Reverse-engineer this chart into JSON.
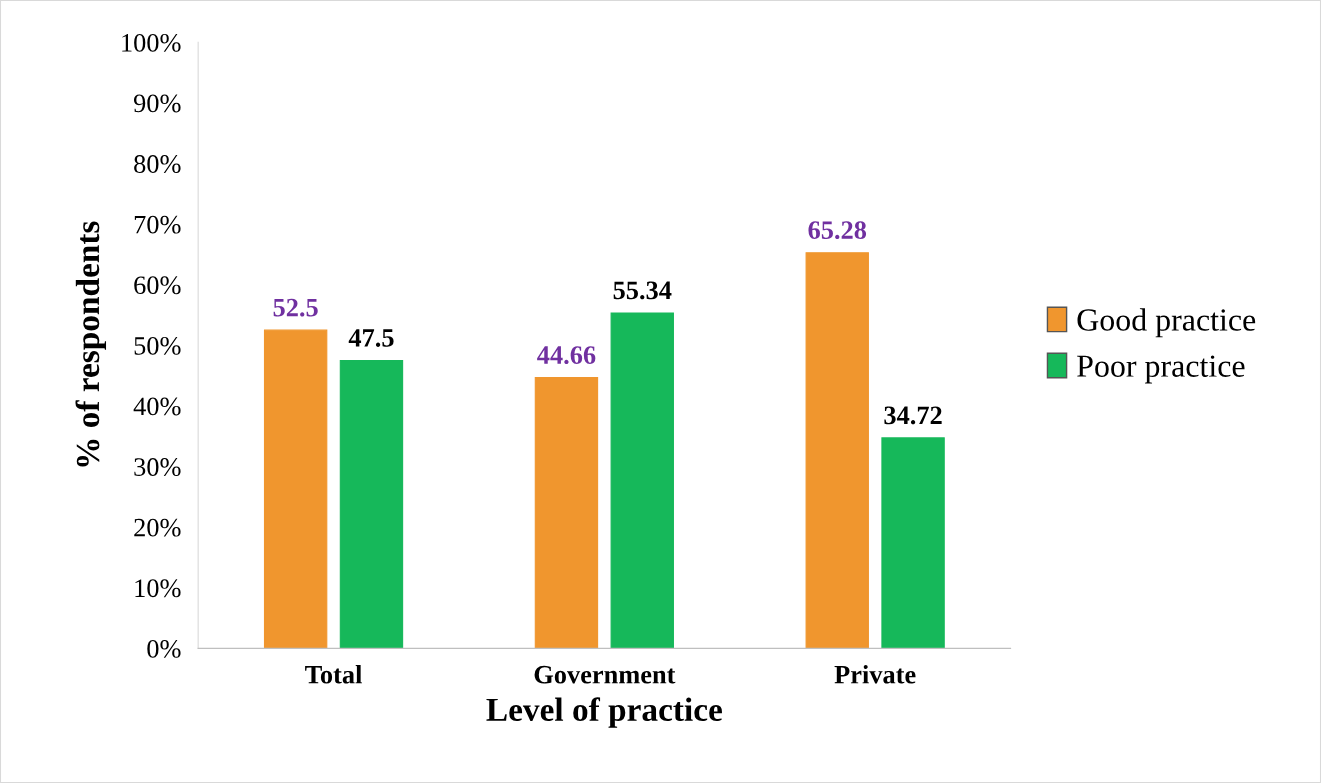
{
  "chart_data": {
    "type": "bar",
    "xlabel": "Level of practice",
    "ylabel": "% of respondents",
    "categories": [
      "Total",
      "Government",
      "Private"
    ],
    "series": [
      {
        "name": "Good practice",
        "color": "#f0962e",
        "values": [
          52.5,
          44.66,
          65.28
        ]
      },
      {
        "name": "Poor practice",
        "color": "#16b85a",
        "values": [
          47.5,
          55.34,
          34.72
        ]
      }
    ],
    "ylim": [
      0,
      100
    ],
    "yticks": [
      {
        "value": 0,
        "label": "0%"
      },
      {
        "value": 10,
        "label": "10%"
      },
      {
        "value": 20,
        "label": "20%"
      },
      {
        "value": 30,
        "label": "30%"
      },
      {
        "value": 40,
        "label": "40%"
      },
      {
        "value": 50,
        "label": "50%"
      },
      {
        "value": 60,
        "label": "60%"
      },
      {
        "value": 70,
        "label": "70%"
      },
      {
        "value": 80,
        "label": "80%"
      },
      {
        "value": 90,
        "label": "90%"
      },
      {
        "value": 100,
        "label": "100%"
      }
    ],
    "data_labels": true,
    "legend": "right",
    "grid": false
  }
}
